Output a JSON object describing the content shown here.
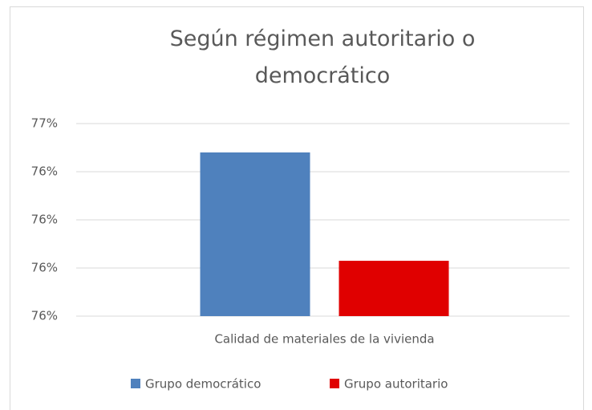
{
  "chart_data": {
    "type": "bar",
    "title": "Según régimen autoritario o democrático",
    "categories": [
      "Calidad de materiales de la vivienda"
    ],
    "series": [
      {
        "name": "Grupo democrático",
        "color": "#4f81bd",
        "values": [
          76.48
        ]
      },
      {
        "name": "Grupo autoritario",
        "color": "#e00000",
        "values": [
          76.03
        ]
      }
    ],
    "ylim": [
      75.8,
      76.6
    ],
    "yticks": [
      {
        "value": 75.8,
        "label": "76%"
      },
      {
        "value": 76.0,
        "label": "76%"
      },
      {
        "value": 76.2,
        "label": "76%"
      },
      {
        "value": 76.4,
        "label": "76%"
      },
      {
        "value": 76.6,
        "label": "77%"
      }
    ],
    "grid": true,
    "legend": "bottom"
  }
}
